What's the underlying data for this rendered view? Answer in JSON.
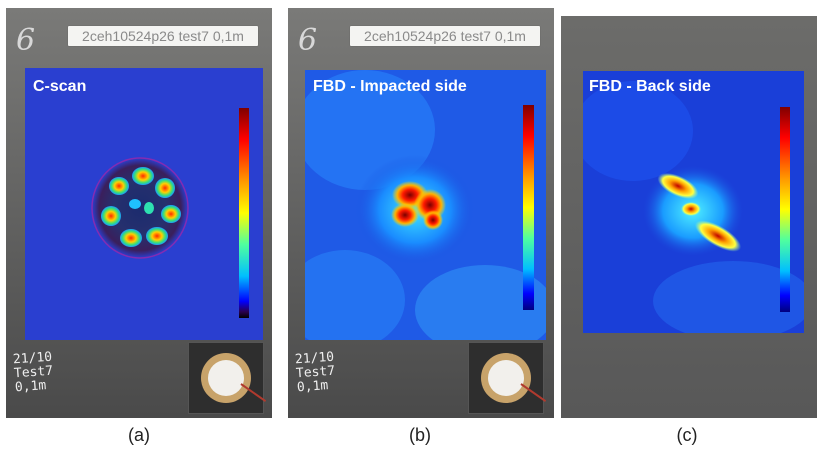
{
  "figure": {
    "panels": [
      {
        "tag": "2ceh10524p26 test7 0,1m",
        "scrawl": "6",
        "title": "C-scan",
        "note": [
          "21/10",
          "Test7",
          "0,1m"
        ],
        "caption": "(a)"
      },
      {
        "tag": "2ceh10524p26 test7 0,1m",
        "scrawl": "6",
        "title": "FBD - Impacted side",
        "note": [
          "21/10",
          "Test7",
          "0,1m"
        ],
        "caption": "(b)"
      },
      {
        "title": "FBD - Back side",
        "caption": "(c)"
      }
    ],
    "colors": {
      "plate": "#5c5c5c",
      "map_background": "#2a3fd0",
      "colorbar": [
        "#00007f",
        "#0000ff",
        "#00bfff",
        "#4fff9f",
        "#ffff00",
        "#ff6f00",
        "#c00000",
        "#7f0000"
      ]
    }
  }
}
